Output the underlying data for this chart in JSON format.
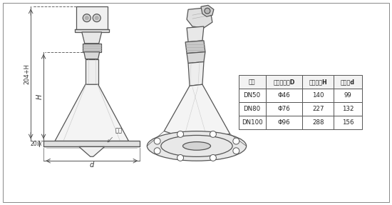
{
  "bg_color": "#ffffff",
  "line_color": "#555555",
  "table_headers": [
    "法兰",
    "喇叭口直径D",
    "喇叭高度H",
    "四螺盘d"
  ],
  "table_rows": [
    [
      "DN50",
      "Φ46",
      "140",
      "99"
    ],
    [
      "DN80",
      "Φ76",
      "227",
      "132"
    ],
    [
      "DN100",
      "Φ96",
      "288",
      "156"
    ]
  ],
  "dim_label_204H": "204+H",
  "dim_label_H": "H",
  "dim_label_20": "20",
  "dim_label_d": "d",
  "dim_label_flange": "法兰"
}
